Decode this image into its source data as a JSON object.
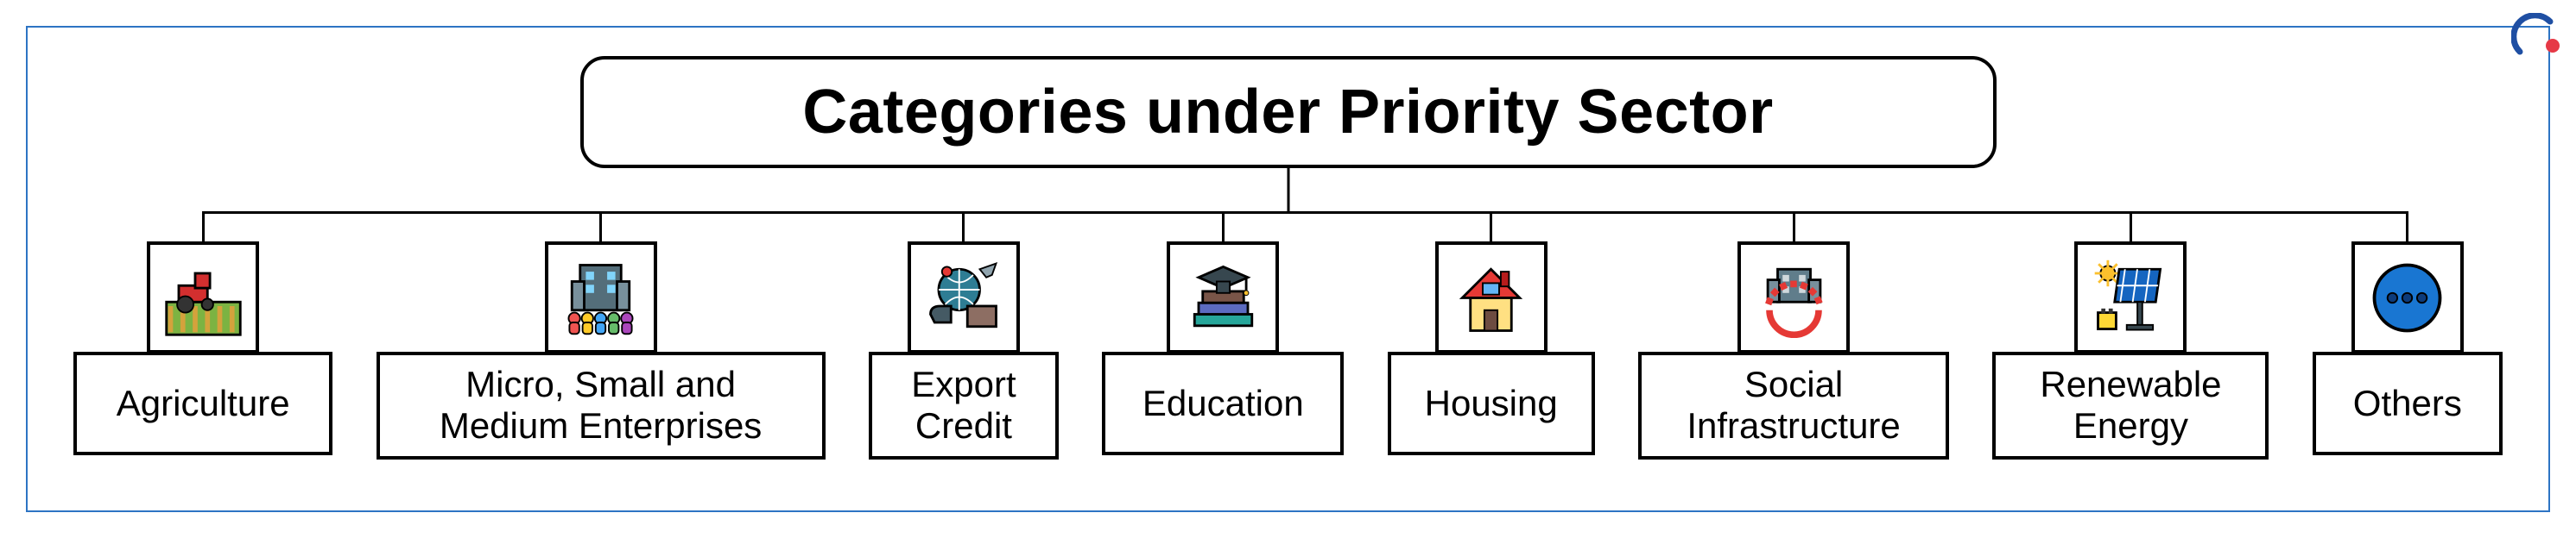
{
  "frame_color": "#2d74c4",
  "title": "Categories under Priority Sector",
  "title_fontsize": 72,
  "title_fontweight": 800,
  "border_color": "#000000",
  "logo": {
    "arc_color": "#1f4fa3",
    "dot_color": "#e63946"
  },
  "categories": [
    {
      "id": "agriculture",
      "label": "Agriculture",
      "label_width": 300,
      "icon": "agriculture"
    },
    {
      "id": "msme",
      "label": "Micro, Small and\nMedium Enterprises",
      "label_width": 520,
      "icon": "msme"
    },
    {
      "id": "export-credit",
      "label": "Export\nCredit",
      "label_width": 220,
      "icon": "export"
    },
    {
      "id": "education",
      "label": "Education",
      "label_width": 280,
      "icon": "education"
    },
    {
      "id": "housing",
      "label": "Housing",
      "label_width": 240,
      "icon": "housing"
    },
    {
      "id": "social-infra",
      "label": "Social\nInfrastructure",
      "label_width": 360,
      "icon": "social"
    },
    {
      "id": "renewable",
      "label": "Renewable\nEnergy",
      "label_width": 320,
      "icon": "renewable"
    },
    {
      "id": "others",
      "label": "Others",
      "label_width": 220,
      "icon": "others"
    }
  ],
  "icon_colors": {
    "agriculture": {
      "field": "#7cb342",
      "rows": "#d4a23c",
      "tractor": "#d32f2f",
      "sky": "#ffffff"
    },
    "msme": {
      "building": "#546e7a",
      "window": "#81d4fa",
      "people": [
        "#ef5350",
        "#ffca28",
        "#42a5f5",
        "#66bb6a",
        "#ab47bc"
      ]
    },
    "export": {
      "globe": "#2e7d94",
      "plane": "#90a4ae",
      "box": "#8d6e63",
      "ship": "#455a64",
      "pin": "#e53935"
    },
    "education": {
      "cap": "#37474f",
      "book1": "#795548",
      "book2": "#5c6bc0",
      "book3": "#26a69a"
    },
    "housing": {
      "roof": "#e53935",
      "wall": "#ffe082",
      "door": "#6d4c41",
      "window": "#64b5f6"
    },
    "social": {
      "building": "#607d8b",
      "window": "#cfd8dc",
      "gear": "#e53935"
    },
    "renewable": {
      "panel": "#1565c0",
      "sun": "#fbc02d",
      "battery": "#fdd835",
      "stand": "#37474f"
    },
    "others": {
      "circle": "#1976d2",
      "dots": "#0d3b7a"
    }
  }
}
